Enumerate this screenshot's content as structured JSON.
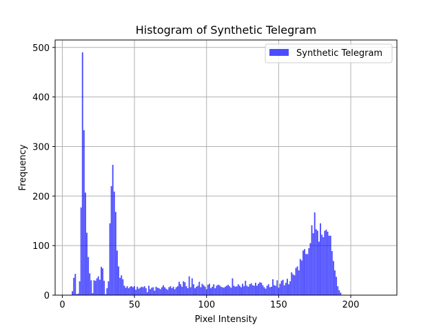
{
  "chart_data": {
    "type": "bar",
    "title": "Histogram of Synthetic Telegram",
    "xlabel": "Pixel Intensity",
    "ylabel": "Frequency",
    "xlim": [
      -5,
      232
    ],
    "ylim": [
      0,
      515
    ],
    "xticks": [
      0,
      50,
      100,
      150,
      200
    ],
    "yticks": [
      0,
      100,
      200,
      300,
      400,
      500
    ],
    "grid": true,
    "legend_position": "top-right",
    "bar_color": "#0000ff",
    "bar_opacity": 0.7,
    "series": [
      {
        "name": "Synthetic Telegram",
        "x_start": 7,
        "values": [
          8,
          35,
          43,
          2,
          3,
          28,
          177,
          490,
          333,
          207,
          126,
          77,
          44,
          30,
          4,
          30,
          29,
          34,
          38,
          31,
          57,
          54,
          29,
          2,
          14,
          28,
          145,
          220,
          263,
          209,
          168,
          90,
          58,
          35,
          40,
          32,
          19,
          15,
          18,
          14,
          17,
          18,
          16,
          18,
          11,
          17,
          13,
          15,
          17,
          16,
          18,
          14,
          6,
          19,
          12,
          15,
          16,
          9,
          17,
          15,
          14,
          12,
          16,
          20,
          16,
          13,
          11,
          16,
          18,
          14,
          17,
          12,
          16,
          18,
          27,
          22,
          17,
          28,
          26,
          18,
          14,
          38,
          16,
          34,
          22,
          14,
          17,
          19,
          27,
          16,
          23,
          20,
          17,
          12,
          21,
          23,
          14,
          17,
          22,
          14,
          19,
          21,
          20,
          17,
          16,
          15,
          17,
          19,
          21,
          18,
          15,
          34,
          19,
          17,
          18,
          22,
          19,
          16,
          23,
          18,
          29,
          19,
          17,
          22,
          24,
          20,
          19,
          25,
          19,
          23,
          26,
          25,
          20,
          16,
          13,
          19,
          22,
          16,
          17,
          32,
          20,
          19,
          30,
          15,
          23,
          29,
          31,
          20,
          25,
          33,
          22,
          28,
          46,
          42,
          40,
          55,
          58,
          50,
          73,
          70,
          90,
          93,
          83,
          83,
          95,
          105,
          141,
          125,
          167,
          133,
          130,
          108,
          145,
          122,
          117,
          130,
          132,
          128,
          120,
          120,
          89,
          69,
          50,
          37,
          18,
          10,
          5
        ]
      }
    ]
  }
}
